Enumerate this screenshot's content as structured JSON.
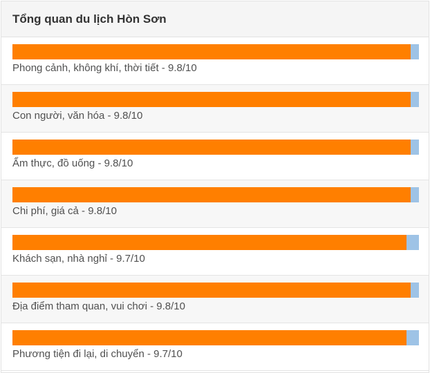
{
  "panel": {
    "title": "Tổng quan du lịch Hòn Sơn"
  },
  "colors": {
    "bar_fill": "#ff7f00",
    "bar_track": "#9ec3e6"
  },
  "ratings": [
    {
      "label": "Phong cảnh, không khí, thời tiết - 9.8/10",
      "score": 9.8,
      "max": 10
    },
    {
      "label": "Con người, văn hóa - 9.8/10",
      "score": 9.8,
      "max": 10
    },
    {
      "label": "Ẩm thực, đồ uống - 9.8/10",
      "score": 9.8,
      "max": 10
    },
    {
      "label": "Chi phí, giá cả - 9.8/10",
      "score": 9.8,
      "max": 10
    },
    {
      "label": "Khách sạn, nhà nghỉ - 9.7/10",
      "score": 9.7,
      "max": 10
    },
    {
      "label": "Địa điểm tham quan, vui chơi - 9.8/10",
      "score": 9.8,
      "max": 10
    },
    {
      "label": "Phương tiện đi lại, di chuyển - 9.7/10",
      "score": 9.7,
      "max": 10
    }
  ]
}
